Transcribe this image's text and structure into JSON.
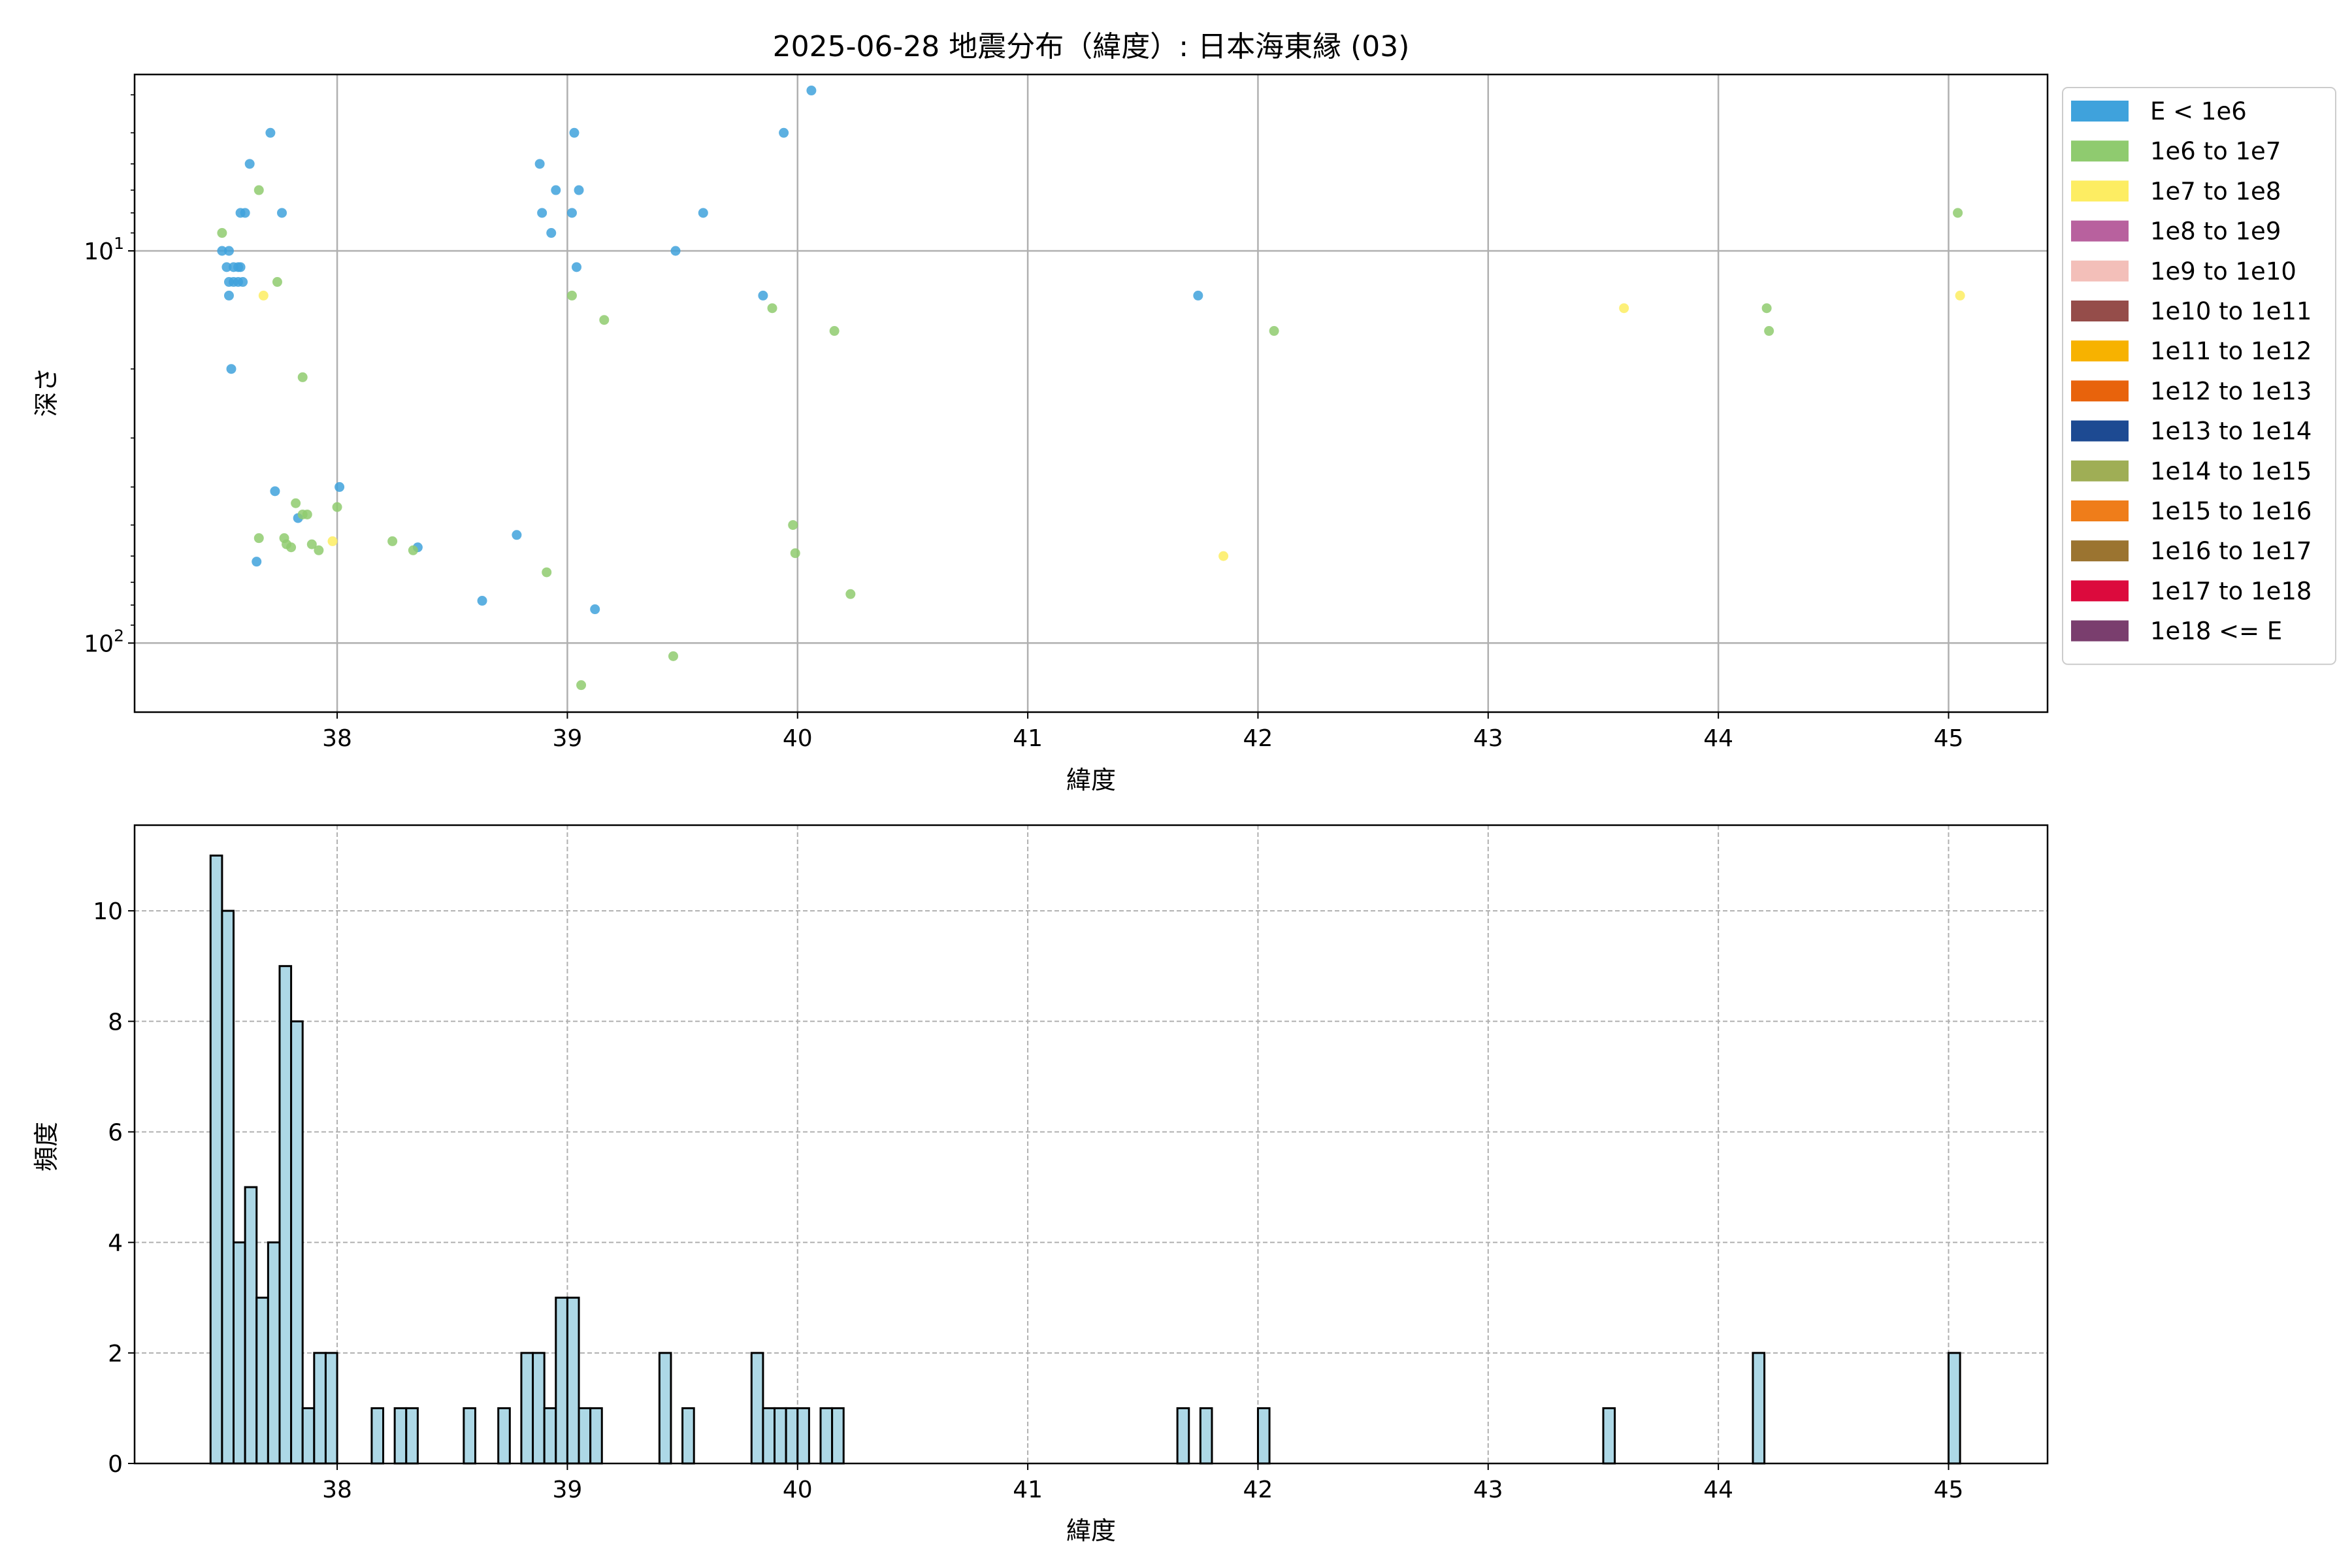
{
  "figure": {
    "title": "2025-06-28 地震分布（緯度）: 日本海東縁 (03)"
  },
  "chart_data": [
    {
      "type": "scatter",
      "xlabel": "緯度",
      "ylabel": "深さ",
      "xlim": [
        37.12,
        45.43
      ],
      "ylim": [
        150,
        3.55
      ],
      "yscale": "log",
      "y_inverted": true,
      "x_ticks": [
        38,
        39,
        40,
        41,
        42,
        43,
        44,
        45
      ],
      "y_ticks": [
        {
          "value": 10,
          "label_base": "10",
          "label_exp": "1"
        },
        {
          "value": 100,
          "label_base": "10",
          "label_exp": "2"
        }
      ],
      "grid": true,
      "legend_position": "outside-right",
      "series": [
        {
          "name": "E < 1e6",
          "color": "#3fa2dc",
          "points": [
            [
              37.5,
              10
            ],
            [
              37.53,
              10
            ],
            [
              37.52,
              11
            ],
            [
              37.55,
              11
            ],
            [
              37.57,
              11
            ],
            [
              37.58,
              11
            ],
            [
              37.53,
              12
            ],
            [
              37.55,
              12
            ],
            [
              37.57,
              12
            ],
            [
              37.59,
              12
            ],
            [
              37.53,
              13
            ],
            [
              37.58,
              8
            ],
            [
              37.6,
              8
            ],
            [
              37.62,
              6
            ],
            [
              37.71,
              5
            ],
            [
              37.76,
              8
            ],
            [
              37.54,
              20
            ],
            [
              37.65,
              62
            ],
            [
              37.73,
              41
            ],
            [
              37.83,
              48
            ],
            [
              38.01,
              40
            ],
            [
              38.35,
              57
            ],
            [
              38.63,
              78
            ],
            [
              38.78,
              53
            ],
            [
              38.88,
              6
            ],
            [
              38.89,
              8
            ],
            [
              38.93,
              9
            ],
            [
              38.95,
              7
            ],
            [
              39.02,
              8
            ],
            [
              39.03,
              5
            ],
            [
              39.04,
              11
            ],
            [
              39.05,
              7
            ],
            [
              39.12,
              82
            ],
            [
              39.47,
              10
            ],
            [
              39.59,
              8
            ],
            [
              39.85,
              13
            ],
            [
              39.94,
              5
            ],
            [
              40.06,
              3.9
            ],
            [
              41.74,
              13
            ]
          ]
        },
        {
          "name": "1e6 to 1e7",
          "color": "#8fcb6f",
          "points": [
            [
              37.5,
              9
            ],
            [
              37.66,
              7
            ],
            [
              37.74,
              12
            ],
            [
              37.66,
              54
            ],
            [
              37.77,
              54
            ],
            [
              37.78,
              56
            ],
            [
              37.8,
              57
            ],
            [
              37.82,
              44
            ],
            [
              37.85,
              21
            ],
            [
              37.85,
              47
            ],
            [
              37.87,
              47
            ],
            [
              37.89,
              56
            ],
            [
              37.92,
              58
            ],
            [
              38.0,
              45
            ],
            [
              38.24,
              55
            ],
            [
              38.33,
              58
            ],
            [
              38.91,
              66
            ],
            [
              39.02,
              13
            ],
            [
              39.06,
              128
            ],
            [
              39.16,
              15
            ],
            [
              39.46,
              108
            ],
            [
              39.89,
              14
            ],
            [
              39.98,
              50
            ],
            [
              39.99,
              59
            ],
            [
              40.16,
              16
            ],
            [
              40.23,
              75
            ],
            [
              42.07,
              16
            ],
            [
              44.21,
              14
            ],
            [
              44.22,
              16
            ],
            [
              45.04,
              8
            ]
          ]
        },
        {
          "name": "1e7 to 1e8",
          "color": "#fded62",
          "points": [
            [
              37.68,
              13
            ],
            [
              37.98,
              55
            ],
            [
              41.85,
              60
            ],
            [
              43.59,
              14
            ],
            [
              45.05,
              13
            ]
          ]
        },
        {
          "name": "1e8 to 1e9",
          "color": "#b8619e",
          "points": []
        },
        {
          "name": "1e9 to 1e10",
          "color": "#f3bfb9",
          "points": []
        },
        {
          "name": "1e10 to 1e11",
          "color": "#954d4a",
          "points": []
        },
        {
          "name": "1e11 to 1e12",
          "color": "#f7b200",
          "points": []
        },
        {
          "name": "1e12 to 1e13",
          "color": "#e8630c",
          "points": []
        },
        {
          "name": "1e13 to 1e14",
          "color": "#1d4a92",
          "points": []
        },
        {
          "name": "1e14 to 1e15",
          "color": "#9fae55",
          "points": []
        },
        {
          "name": "1e15 to 1e16",
          "color": "#ef7d1a",
          "points": []
        },
        {
          "name": "1e16 to 1e17",
          "color": "#9b7430",
          "points": []
        },
        {
          "name": "1e17 to 1e18",
          "color": "#dc0a3d",
          "points": []
        },
        {
          "name": "1e18 <= E",
          "color": "#7a3e6e",
          "points": []
        }
      ]
    },
    {
      "type": "bar",
      "xlabel": "緯度",
      "ylabel": "頻度",
      "xlim": [
        37.12,
        45.43
      ],
      "ylim": [
        0,
        11.55
      ],
      "x_ticks": [
        38,
        39,
        40,
        41,
        42,
        43,
        44,
        45
      ],
      "y_ticks": [
        0,
        2,
        4,
        6,
        8,
        10
      ],
      "grid": true,
      "grid_style": "dashed",
      "bar_color": "#add8e6",
      "bar_edge": "#000000",
      "bin_width": 0.05,
      "bins": [
        [
          37.475,
          11
        ],
        [
          37.525,
          10
        ],
        [
          37.575,
          4
        ],
        [
          37.625,
          5
        ],
        [
          37.675,
          3
        ],
        [
          37.725,
          4
        ],
        [
          37.775,
          9
        ],
        [
          37.825,
          8
        ],
        [
          37.875,
          1
        ],
        [
          37.925,
          2
        ],
        [
          37.975,
          2
        ],
        [
          38.175,
          1
        ],
        [
          38.275,
          1
        ],
        [
          38.325,
          1
        ],
        [
          38.575,
          1
        ],
        [
          38.725,
          1
        ],
        [
          38.825,
          2
        ],
        [
          38.875,
          2
        ],
        [
          38.925,
          1
        ],
        [
          38.975,
          3
        ],
        [
          39.025,
          3
        ],
        [
          39.075,
          1
        ],
        [
          39.125,
          1
        ],
        [
          39.425,
          2
        ],
        [
          39.525,
          1
        ],
        [
          39.825,
          2
        ],
        [
          39.875,
          1
        ],
        [
          39.925,
          1
        ],
        [
          39.975,
          1
        ],
        [
          40.025,
          1
        ],
        [
          40.125,
          1
        ],
        [
          40.175,
          1
        ],
        [
          41.675,
          1
        ],
        [
          41.775,
          1
        ],
        [
          42.025,
          1
        ],
        [
          43.525,
          1
        ],
        [
          44.175,
          2
        ],
        [
          45.025,
          2
        ]
      ]
    }
  ]
}
